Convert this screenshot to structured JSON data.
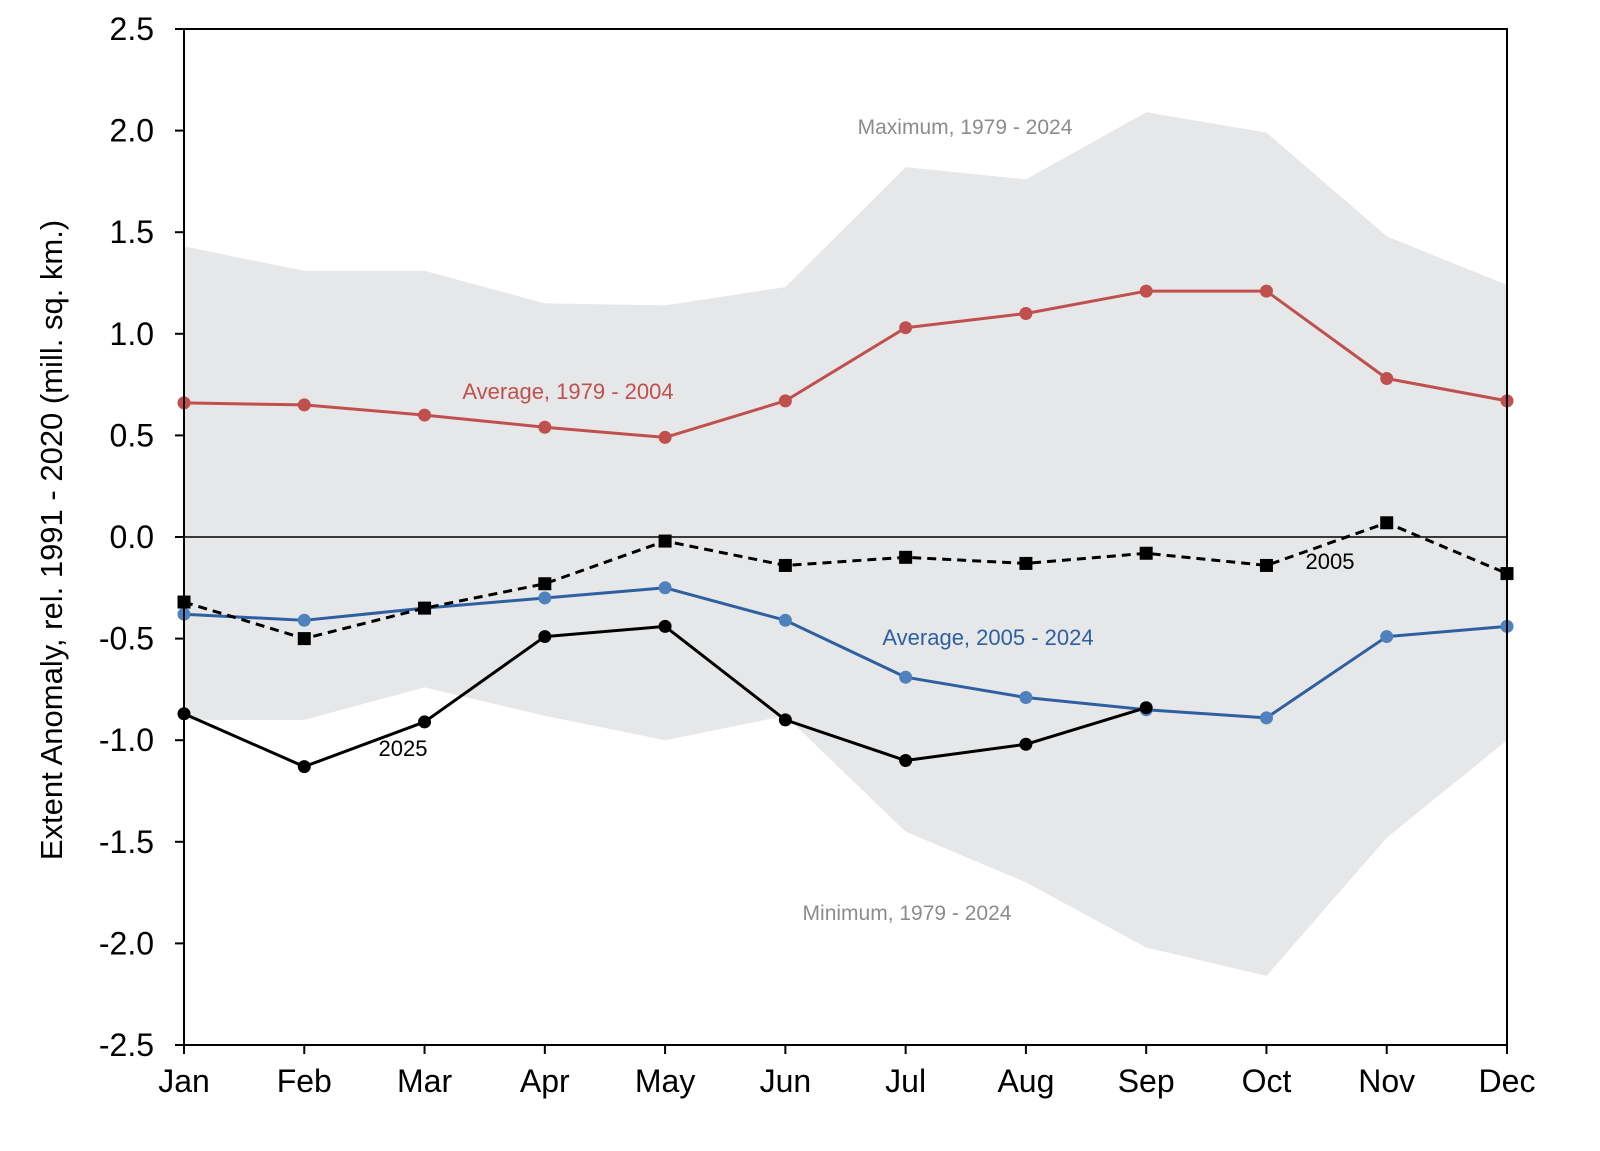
{
  "chart_data": {
    "type": "line",
    "categories": [
      "Jan",
      "Feb",
      "Mar",
      "Apr",
      "May",
      "Jun",
      "Jul",
      "Aug",
      "Sep",
      "Oct",
      "Nov",
      "Dec"
    ],
    "ylabel": "Extent Anomaly, rel. 1991 - 2020 (mill. sq. km.)",
    "ylim": [
      -2.5,
      2.5
    ],
    "yticks": [
      "2.5",
      "2.0",
      "1.5",
      "1.0",
      "0.5",
      "0.0",
      "-0.5",
      "-1.0",
      "-1.5",
      "-2.0",
      "-2.5"
    ],
    "ytick_values": [
      2.5,
      2.0,
      1.5,
      1.0,
      0.5,
      0.0,
      -0.5,
      -1.0,
      -1.5,
      -2.0,
      -2.5
    ],
    "grid": false,
    "range_band": {
      "max_label": "Maximum, 1979 - 2024",
      "min_label": "Minimum, 1979 - 2024",
      "max": [
        1.43,
        1.31,
        1.31,
        1.15,
        1.14,
        1.23,
        1.82,
        1.76,
        2.09,
        1.99,
        1.48,
        1.24
      ],
      "min": [
        -0.9,
        -0.9,
        -0.74,
        -0.88,
        -1.0,
        -0.88,
        -1.45,
        -1.7,
        -2.02,
        -2.16,
        -1.48,
        -1.0
      ],
      "color": "#e6e7e8"
    },
    "series": [
      {
        "name": "Average, 1979 - 2004",
        "values": [
          0.66,
          0.65,
          0.6,
          0.54,
          0.49,
          0.67,
          1.03,
          1.1,
          1.21,
          1.21,
          0.78,
          0.67
        ],
        "color": "#c0504d",
        "marker": "circle",
        "dash": false
      },
      {
        "name": "Average, 2005 - 2024",
        "values": [
          -0.38,
          -0.41,
          -0.35,
          -0.3,
          -0.25,
          -0.41,
          -0.69,
          -0.79,
          -0.85,
          -0.89,
          -0.49,
          -0.44
        ],
        "color": "#2e5fa0",
        "marker_color": "#4f81bd",
        "marker": "circle",
        "dash": false
      },
      {
        "name": "2005",
        "values": [
          -0.32,
          -0.5,
          -0.35,
          -0.23,
          -0.02,
          -0.14,
          -0.1,
          -0.13,
          -0.08,
          -0.14,
          0.07,
          -0.18
        ],
        "color": "#000000",
        "marker": "square",
        "dash": true
      },
      {
        "name": "2025",
        "values": [
          -0.87,
          -1.13,
          -0.91,
          -0.49,
          -0.44,
          -0.9,
          -1.1,
          -1.02,
          -0.84,
          null,
          null,
          null
        ],
        "color": "#000000",
        "marker": "circle",
        "dash": false
      }
    ],
    "annotations": {
      "avg_old_color": "#c0504d",
      "avg_new_color": "#2e5fa0",
      "range_label_color": "#8c8c8c"
    }
  }
}
